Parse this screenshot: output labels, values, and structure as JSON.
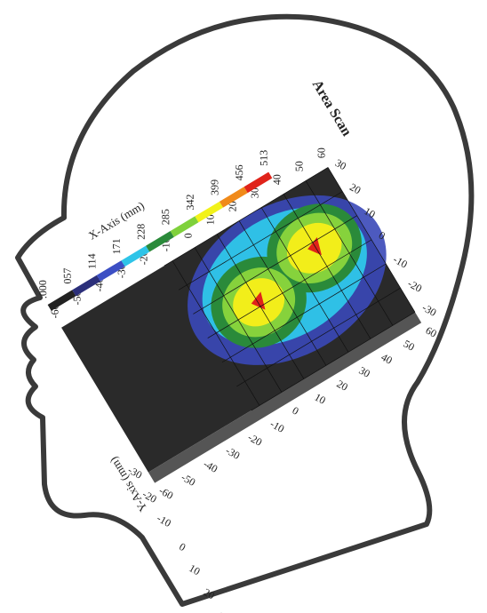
{
  "figure": {
    "title": "Area Scan",
    "x_axis": {
      "label": "X-Axis (mm)",
      "ticks": [
        "-60",
        "-50",
        "-40",
        "-30",
        "-20",
        "-10",
        "0",
        "10",
        "20",
        "30",
        "40",
        "50",
        "60"
      ]
    },
    "y_axis": {
      "label": "Y-Axis (mm)",
      "ticks": [
        "-30",
        "-20",
        "-10",
        "0",
        "10",
        "20",
        "30"
      ]
    },
    "legend": {
      "labels": [
        ".000",
        "057",
        "114",
        "171",
        "228",
        "285",
        "342",
        "399",
        "456",
        "513"
      ]
    }
  }
}
